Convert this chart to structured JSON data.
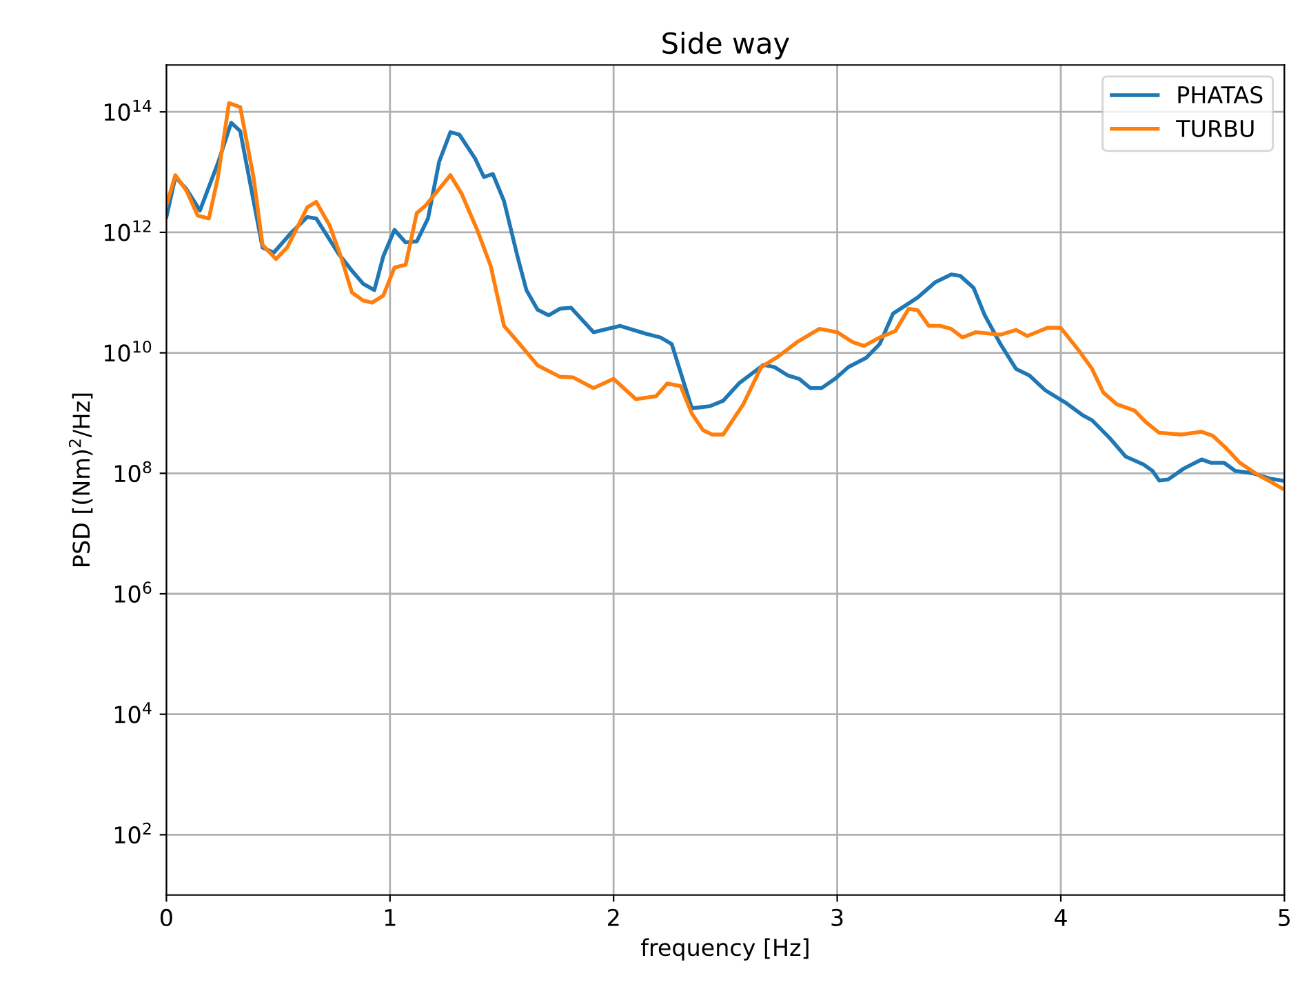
{
  "chart_data": {
    "type": "line",
    "title": "Side way",
    "xlabel": "frequency [Hz]",
    "ylabel": "PSD [(Nm)$^{2}$/Hz]",
    "log": "y",
    "xlim": [
      0,
      5
    ],
    "xticks": [
      0,
      1,
      2,
      3,
      4,
      5
    ],
    "ylim": [
      10,
      600000000000000.0
    ],
    "yticks": [
      {
        "value": 100,
        "label": "10$^{2}$"
      },
      {
        "value": 10000,
        "label": "10$^{4}$"
      },
      {
        "value": 1000000,
        "label": "10$^{6}$"
      },
      {
        "value": 100000000,
        "label": "10$^{8}$"
      },
      {
        "value": 10000000000,
        "label": "10$^{10}$"
      },
      {
        "value": 1000000000000,
        "label": "10$^{12}$"
      },
      {
        "value": 100000000000000,
        "label": "10$^{14}$"
      }
    ],
    "grid": true,
    "legend": "top right",
    "marker": "none",
    "line_style": "solid",
    "series": [
      {
        "name": "PHATAS",
        "color": "#1f77b4",
        "x": [
          0,
          0.04,
          0.09,
          0.15,
          0.23,
          0.29,
          0.33,
          0.39,
          0.43,
          0.48,
          0.56,
          0.63,
          0.67,
          0.77,
          0.83,
          0.88,
          0.93,
          0.97,
          1.02,
          1.07,
          1.12,
          1.17,
          1.22,
          1.27,
          1.31,
          1.38,
          1.42,
          1.46,
          1.51,
          1.57,
          1.61,
          1.66,
          1.71,
          1.76,
          1.81,
          1.91,
          2.03,
          2.14,
          2.21,
          2.26,
          2.35,
          2.43,
          2.49,
          2.56,
          2.67,
          2.72,
          2.78,
          2.83,
          2.88,
          2.93,
          2.99,
          3.05,
          3.13,
          3.19,
          3.25,
          3.36,
          3.44,
          3.51,
          3.55,
          3.61,
          3.66,
          3.73,
          3.8,
          3.86,
          3.93,
          4.02,
          4.1,
          4.14,
          4.22,
          4.29,
          4.37,
          4.41,
          4.44,
          4.48,
          4.55,
          4.63,
          4.67,
          4.73,
          4.78,
          4.86,
          4.94,
          4.99
        ],
        "values": [
          1800000000000.0,
          8300000000000.0,
          5200000000000.0,
          2300000000000.0,
          14000000000000.0,
          66000000000000.0,
          48000000000000.0,
          3300000000000.0,
          560000000000.0,
          460000000000.0,
          1000000000000.0,
          1800000000000.0,
          1700000000000.0,
          440000000000.0,
          230000000000.0,
          140000000000.0,
          110000000000.0,
          400000000000.0,
          1100000000000.0,
          680000000000.0,
          710000000000.0,
          1700000000000.0,
          15000000000000.0,
          46000000000000.0,
          42000000000000.0,
          17000000000000.0,
          8300000000000.0,
          9300000000000.0,
          3300000000000.0,
          400000000000.0,
          110000000000.0,
          52000000000.0,
          42000000000.0,
          54000000000.0,
          56000000000.0,
          22000000000.0,
          28000000000.0,
          21000000000.0,
          18000000000.0,
          14000000000.0,
          1200000000.0,
          1300000000.0,
          1600000000.0,
          3100000000.0,
          6300000000.0,
          5800000000.0,
          4200000000.0,
          3700000000.0,
          2600000000.0,
          2600000000.0,
          3700000000.0,
          5800000000.0,
          8300000000.0,
          14000000000.0,
          45000000000.0,
          83000000000.0,
          150000000000.0,
          200000000000.0,
          190000000000.0,
          120000000000.0,
          42000000000.0,
          14000000000.0,
          5400000000.0,
          4200000000.0,
          2400000000.0,
          1500000000.0,
          910000000.0,
          760000000.0,
          380000000.0,
          190000000.0,
          140000000.0,
          110000000.0,
          76000000.0,
          79000000.0,
          120000000.0,
          170000000.0,
          150000000.0,
          150000000.0,
          110000000.0,
          100000000.0,
          81000000.0,
          76000000.0
        ]
      },
      {
        "name": "TURBU",
        "color": "#ff7f0e",
        "x": [
          0,
          0.04,
          0.09,
          0.14,
          0.19,
          0.23,
          0.28,
          0.33,
          0.39,
          0.43,
          0.49,
          0.54,
          0.63,
          0.67,
          0.73,
          0.78,
          0.83,
          0.88,
          0.92,
          0.97,
          1.02,
          1.07,
          1.12,
          1.16,
          1.27,
          1.32,
          1.39,
          1.45,
          1.51,
          1.58,
          1.66,
          1.76,
          1.82,
          1.91,
          2.0,
          2.1,
          2.19,
          2.24,
          2.3,
          2.35,
          2.4,
          2.44,
          2.49,
          2.58,
          2.66,
          2.74,
          2.82,
          2.92,
          3.0,
          3.07,
          3.12,
          3.19,
          3.26,
          3.32,
          3.36,
          3.41,
          3.46,
          3.51,
          3.56,
          3.62,
          3.73,
          3.8,
          3.85,
          3.94,
          4.0,
          4.08,
          4.14,
          4.19,
          4.25,
          4.33,
          4.38,
          4.44,
          4.54,
          4.63,
          4.68,
          4.74,
          4.8,
          4.88,
          4.94,
          4.99
        ],
        "values": [
          2800000000000.0,
          8900000000000.0,
          4900000000000.0,
          1900000000000.0,
          1700000000000.0,
          8100000000000.0,
          140000000000000.0,
          120000000000000.0,
          8100000000000.0,
          620000000000.0,
          360000000000.0,
          560000000000.0,
          2600000000000.0,
          3200000000000.0,
          1300000000000.0,
          400000000000.0,
          100000000000.0,
          74000000000.0,
          68000000000.0,
          89000000000.0,
          260000000000.0,
          290000000000.0,
          2100000000000.0,
          2800000000000.0,
          8900000000000.0,
          4400000000000.0,
          1100000000000.0,
          280000000000.0,
          28000000000.0,
          14000000000.0,
          6200000000.0,
          4000000000.0,
          3900000000.0,
          2600000000.0,
          3700000000.0,
          1700000000.0,
          1900000000.0,
          3100000000.0,
          2800000000.0,
          980000000.0,
          520000000.0,
          440000000.0,
          440000000.0,
          1400000000.0,
          5800000000.0,
          8900000000.0,
          15000000000.0,
          25000000000.0,
          22000000000.0,
          15000000000.0,
          13000000000.0,
          18000000000.0,
          23000000000.0,
          54000000000.0,
          51000000000.0,
          28000000000.0,
          28000000000.0,
          25000000000.0,
          18000000000.0,
          22000000000.0,
          20000000000.0,
          24000000000.0,
          19000000000.0,
          26000000000.0,
          26000000000.0,
          11000000000.0,
          5400000000.0,
          2200000000.0,
          1400000000.0,
          1100000000.0,
          710000000.0,
          470000000.0,
          440000000.0,
          490000000.0,
          420000000.0,
          260000000.0,
          150000000.0,
          95000000.0,
          72000000.0,
          56000000.0
        ]
      }
    ]
  }
}
